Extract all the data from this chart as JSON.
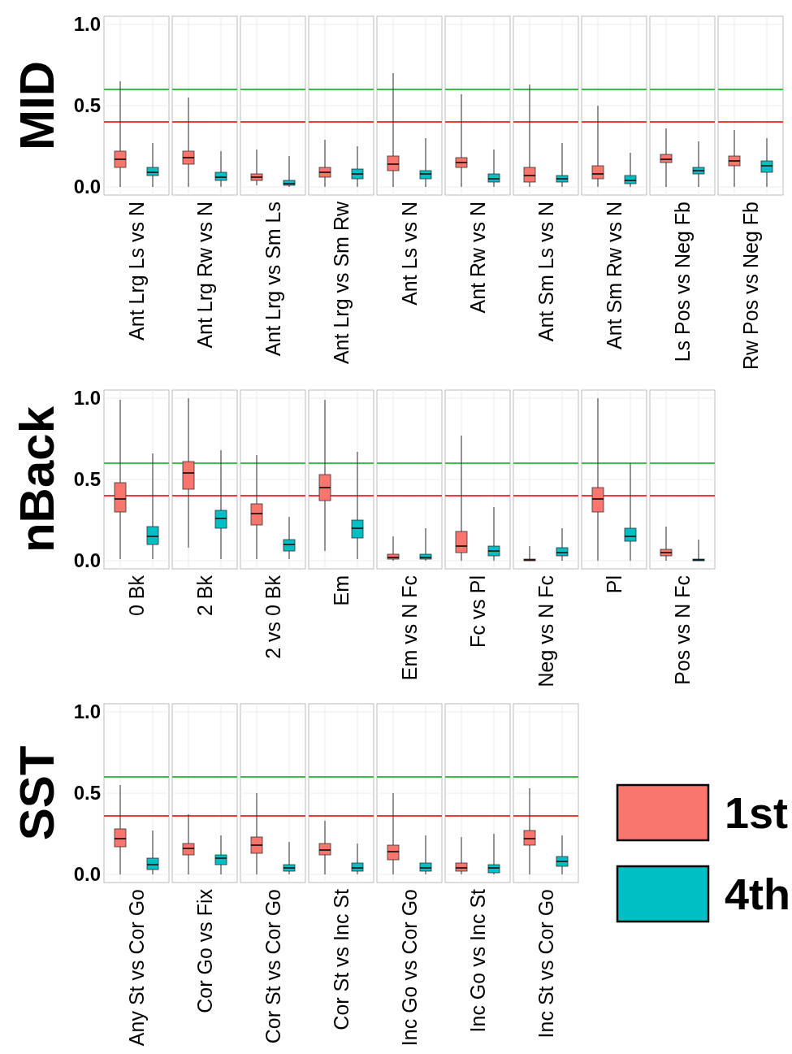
{
  "chart_data": [
    {
      "type": "box",
      "ylabel": "MID",
      "categories": [
        "Ant Lrg Ls vs N",
        "Ant Lrg Rw vs N",
        "Ant Lrg vs Sm Ls",
        "Ant Lrg vs Sm Rw",
        "Ant Ls vs N",
        "Ant Rw vs N",
        "Ant Sm Ls vs N",
        "Ant Sm Rw vs N",
        "Ls Pos vs Neg Fb",
        "Rw Pos vs Neg Fb"
      ],
      "series": [
        {
          "color": "#f8766d",
          "boxes": [
            {
              "low": 0,
              "q1": 0.12,
              "median": 0.17,
              "q3": 0.22,
              "high": 0.65
            },
            {
              "low": 0,
              "q1": 0.14,
              "median": 0.18,
              "q3": 0.22,
              "high": 0.55
            },
            {
              "low": 0.01,
              "q1": 0.04,
              "median": 0.06,
              "q3": 0.08,
              "high": 0.23
            },
            {
              "low": 0,
              "q1": 0.06,
              "median": 0.09,
              "q3": 0.12,
              "high": 0.29
            },
            {
              "low": 0,
              "q1": 0.1,
              "median": 0.14,
              "q3": 0.19,
              "high": 0.7
            },
            {
              "low": 0,
              "q1": 0.12,
              "median": 0.15,
              "q3": 0.18,
              "high": 0.57
            },
            {
              "low": 0,
              "q1": 0.03,
              "median": 0.07,
              "q3": 0.12,
              "high": 0.63
            },
            {
              "low": 0,
              "q1": 0.05,
              "median": 0.08,
              "q3": 0.13,
              "high": 0.5
            },
            {
              "low": 0,
              "q1": 0.15,
              "median": 0.17,
              "q3": 0.2,
              "high": 0.36
            },
            {
              "low": 0,
              "q1": 0.13,
              "median": 0.16,
              "q3": 0.19,
              "high": 0.35
            }
          ]
        },
        {
          "color": "#00bfc4",
          "boxes": [
            {
              "low": 0,
              "q1": 0.07,
              "median": 0.09,
              "q3": 0.12,
              "high": 0.27
            },
            {
              "low": 0,
              "q1": 0.04,
              "median": 0.06,
              "q3": 0.09,
              "high": 0.22
            },
            {
              "low": 0,
              "q1": 0.01,
              "median": 0.02,
              "q3": 0.04,
              "high": 0.19
            },
            {
              "low": 0,
              "q1": 0.05,
              "median": 0.08,
              "q3": 0.11,
              "high": 0.25
            },
            {
              "low": 0,
              "q1": 0.05,
              "median": 0.08,
              "q3": 0.1,
              "high": 0.3
            },
            {
              "low": 0,
              "q1": 0.03,
              "median": 0.05,
              "q3": 0.08,
              "high": 0.23
            },
            {
              "low": 0,
              "q1": 0.03,
              "median": 0.05,
              "q3": 0.07,
              "high": 0.27
            },
            {
              "low": 0,
              "q1": 0.02,
              "median": 0.04,
              "q3": 0.07,
              "high": 0.21
            },
            {
              "low": 0,
              "q1": 0.08,
              "median": 0.1,
              "q3": 0.12,
              "high": 0.28
            },
            {
              "low": 0,
              "q1": 0.09,
              "median": 0.13,
              "q3": 0.16,
              "high": 0.3
            }
          ]
        }
      ],
      "ylim": [
        -0.05,
        1.05
      ],
      "yticks": [
        {
          "value": 0,
          "label": "0.0"
        },
        {
          "value": 0.5,
          "label": "0.5"
        },
        {
          "value": 1,
          "label": "1.0"
        }
      ],
      "grid": true,
      "ref_lines": [
        {
          "axis": "y",
          "value": 0.6,
          "color": "#3cbf4a"
        },
        {
          "axis": "y",
          "value": 0.4,
          "color": "#ef3b3b"
        }
      ]
    },
    {
      "type": "box",
      "ylabel": "nBack",
      "categories": [
        "0 Bk",
        "2 Bk",
        "2 vs 0 Bk",
        "Em",
        "Em vs N Fc",
        "Fc vs Pl",
        "Neg vs N Fc",
        "Pl",
        "Pos vs N Fc"
      ],
      "series": [
        {
          "color": "#f8766d",
          "boxes": [
            {
              "low": 0.01,
              "q1": 0.3,
              "median": 0.38,
              "q3": 0.48,
              "high": 0.99
            },
            {
              "low": 0.08,
              "q1": 0.44,
              "median": 0.54,
              "q3": 0.61,
              "high": 1
            },
            {
              "low": 0.01,
              "q1": 0.22,
              "median": 0.29,
              "q3": 0.35,
              "high": 0.65
            },
            {
              "low": 0.06,
              "q1": 0.37,
              "median": 0.45,
              "q3": 0.53,
              "high": 0.99
            },
            {
              "low": 0,
              "q1": 0.01,
              "median": 0.02,
              "q3": 0.04,
              "high": 0.15
            },
            {
              "low": 0,
              "q1": 0.05,
              "median": 0.09,
              "q3": 0.18,
              "high": 0.77
            },
            {
              "low": 0,
              "q1": 0,
              "median": 0.005,
              "q3": 0.01,
              "high": 0.09
            },
            {
              "low": 0,
              "q1": 0.3,
              "median": 0.38,
              "q3": 0.45,
              "high": 1
            },
            {
              "low": 0,
              "q1": 0.03,
              "median": 0.05,
              "q3": 0.07,
              "high": 0.21
            }
          ]
        },
        {
          "color": "#00bfc4",
          "boxes": [
            {
              "low": 0.01,
              "q1": 0.1,
              "median": 0.15,
              "q3": 0.21,
              "high": 0.66
            },
            {
              "low": 0.01,
              "q1": 0.2,
              "median": 0.26,
              "q3": 0.31,
              "high": 0.68
            },
            {
              "low": 0.01,
              "q1": 0.06,
              "median": 0.1,
              "q3": 0.13,
              "high": 0.27
            },
            {
              "low": 0.01,
              "q1": 0.14,
              "median": 0.2,
              "q3": 0.25,
              "high": 0.67
            },
            {
              "low": 0,
              "q1": 0.01,
              "median": 0.02,
              "q3": 0.04,
              "high": 0.2
            },
            {
              "low": 0,
              "q1": 0.03,
              "median": 0.06,
              "q3": 0.09,
              "high": 0.33
            },
            {
              "low": 0,
              "q1": 0.03,
              "median": 0.05,
              "q3": 0.08,
              "high": 0.2
            },
            {
              "low": 0,
              "q1": 0.12,
              "median": 0.15,
              "q3": 0.2,
              "high": 0.6
            },
            {
              "low": 0,
              "q1": 0,
              "median": 0.005,
              "q3": 0.01,
              "high": 0.13
            }
          ]
        }
      ],
      "ylim": [
        -0.05,
        1.05
      ],
      "yticks": [
        {
          "value": 0,
          "label": "0.0"
        },
        {
          "value": 0.5,
          "label": "0.5"
        },
        {
          "value": 1,
          "label": "1.0"
        }
      ],
      "grid": true,
      "ref_lines": [
        {
          "axis": "y",
          "value": 0.6,
          "color": "#3cbf4a"
        },
        {
          "axis": "y",
          "value": 0.4,
          "color": "#ef3b3b"
        }
      ]
    },
    {
      "type": "box",
      "ylabel": "SST",
      "categories": [
        "Any St vs Cor Go",
        "Cor Go vs Fix",
        "Cor St vs Cor Go",
        "Cor St vs Inc St",
        "Inc Go vs Cor Go",
        "Inc Go vs Inc St",
        "Inc St vs Cor Go"
      ],
      "series": [
        {
          "name": "1st",
          "color": "#f8766d",
          "boxes": [
            {
              "low": 0,
              "q1": 0.17,
              "median": 0.22,
              "q3": 0.28,
              "high": 0.55
            },
            {
              "low": 0,
              "q1": 0.12,
              "median": 0.16,
              "q3": 0.19,
              "high": 0.37
            },
            {
              "low": 0,
              "q1": 0.13,
              "median": 0.18,
              "q3": 0.23,
              "high": 0.5
            },
            {
              "low": 0,
              "q1": 0.12,
              "median": 0.15,
              "q3": 0.19,
              "high": 0.33
            },
            {
              "low": 0,
              "q1": 0.09,
              "median": 0.14,
              "q3": 0.18,
              "high": 0.5
            },
            {
              "low": 0,
              "q1": 0.02,
              "median": 0.04,
              "q3": 0.07,
              "high": 0.23
            },
            {
              "low": 0,
              "q1": 0.18,
              "median": 0.22,
              "q3": 0.27,
              "high": 0.53
            }
          ]
        },
        {
          "name": "4th",
          "color": "#00bfc4",
          "boxes": [
            {
              "low": 0,
              "q1": 0.03,
              "median": 0.06,
              "q3": 0.1,
              "high": 0.27
            },
            {
              "low": 0,
              "q1": 0.06,
              "median": 0.1,
              "q3": 0.12,
              "high": 0.24
            },
            {
              "low": 0,
              "q1": 0.02,
              "median": 0.04,
              "q3": 0.06,
              "high": 0.2
            },
            {
              "low": 0,
              "q1": 0.02,
              "median": 0.04,
              "q3": 0.07,
              "high": 0.19
            },
            {
              "low": 0,
              "q1": 0.02,
              "median": 0.04,
              "q3": 0.07,
              "high": 0.24
            },
            {
              "low": 0,
              "q1": 0.01,
              "median": 0.04,
              "q3": 0.06,
              "high": 0.25
            },
            {
              "low": 0,
              "q1": 0.05,
              "median": 0.08,
              "q3": 0.11,
              "high": 0.24
            }
          ]
        }
      ],
      "ylim": [
        -0.05,
        1.05
      ],
      "yticks": [
        {
          "value": 0,
          "label": "0.0"
        },
        {
          "value": 0.5,
          "label": "0.5"
        },
        {
          "value": 1,
          "label": "1.0"
        }
      ],
      "grid": true,
      "legend": "right",
      "ref_lines": [
        {
          "axis": "y",
          "value": 0.6,
          "color": "#3cbf4a"
        },
        {
          "axis": "y",
          "value": 0.36,
          "color": "#ef3b3b"
        }
      ]
    }
  ]
}
